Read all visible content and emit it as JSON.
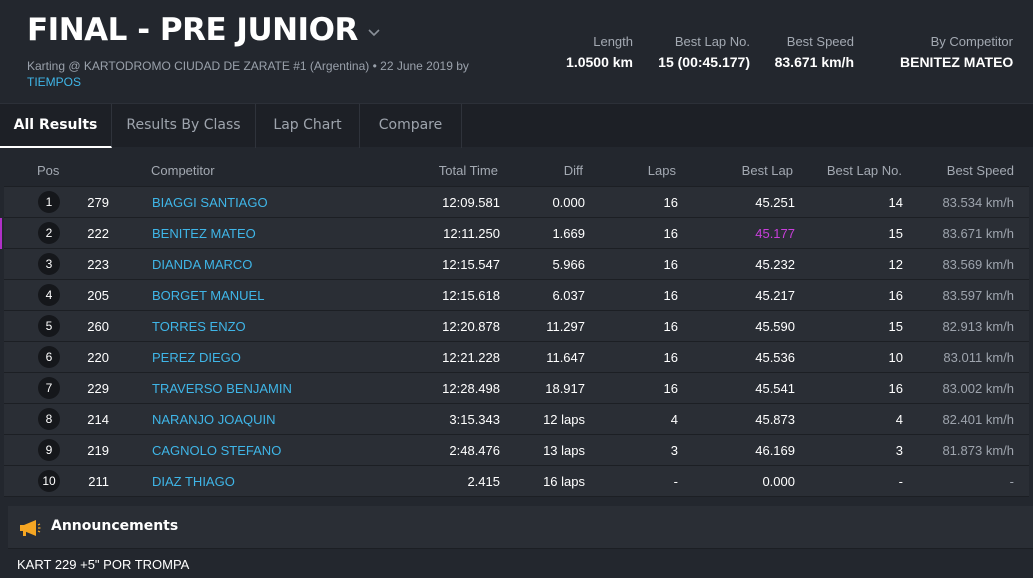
{
  "header": {
    "title": "FINAL - PRE JUNIOR",
    "subtitle_prefix": "Karting @ KARTODROMO CIUDAD DE ZARATE #1 (Argentina) • 22 June 2019 by",
    "subtitle_link": "TIEMPOS",
    "stats": [
      {
        "label": "Length",
        "value": "1.0500 km"
      },
      {
        "label": "Best Lap No.",
        "value": "15 (00:45.177)"
      },
      {
        "label": "Best Speed",
        "value": "83.671 km/h"
      },
      {
        "label": "By Competitor",
        "value": "BENITEZ MATEO"
      }
    ]
  },
  "tabs": [
    {
      "label": "All Results",
      "active": true
    },
    {
      "label": "Results By Class",
      "active": false
    },
    {
      "label": "Lap Chart",
      "active": false
    },
    {
      "label": "Compare",
      "active": false
    }
  ],
  "table": {
    "columns": [
      "Pos",
      "Competitor",
      "Total Time",
      "Diff",
      "Laps",
      "Best Lap",
      "Best Lap No.",
      "Best Speed"
    ],
    "rows": [
      {
        "pos": "1",
        "num": "279",
        "competitor": "BIAGGI SANTIAGO",
        "total": "12:09.581",
        "diff": "0.000",
        "laps": "16",
        "best_lap": "45.251",
        "best_lap_no": "14",
        "best_speed": "83.534 km/h"
      },
      {
        "pos": "2",
        "num": "222",
        "competitor": "BENITEZ MATEO",
        "total": "12:11.250",
        "diff": "1.669",
        "laps": "16",
        "best_lap": "45.177",
        "best_lap_no": "15",
        "best_speed": "83.671 km/h"
      },
      {
        "pos": "3",
        "num": "223",
        "competitor": "DIANDA MARCO",
        "total": "12:15.547",
        "diff": "5.966",
        "laps": "16",
        "best_lap": "45.232",
        "best_lap_no": "12",
        "best_speed": "83.569 km/h"
      },
      {
        "pos": "4",
        "num": "205",
        "competitor": "BORGET MANUEL",
        "total": "12:15.618",
        "diff": "6.037",
        "laps": "16",
        "best_lap": "45.217",
        "best_lap_no": "16",
        "best_speed": "83.597 km/h"
      },
      {
        "pos": "5",
        "num": "260",
        "competitor": "TORRES ENZO",
        "total": "12:20.878",
        "diff": "11.297",
        "laps": "16",
        "best_lap": "45.590",
        "best_lap_no": "15",
        "best_speed": "82.913 km/h"
      },
      {
        "pos": "6",
        "num": "220",
        "competitor": "PEREZ DIEGO",
        "total": "12:21.228",
        "diff": "11.647",
        "laps": "16",
        "best_lap": "45.536",
        "best_lap_no": "10",
        "best_speed": "83.011 km/h"
      },
      {
        "pos": "7",
        "num": "229",
        "competitor": "TRAVERSO BENJAMIN",
        "total": "12:28.498",
        "diff": "18.917",
        "laps": "16",
        "best_lap": "45.541",
        "best_lap_no": "16",
        "best_speed": "83.002 km/h"
      },
      {
        "pos": "8",
        "num": "214",
        "competitor": "NARANJO JOAQUIN",
        "total": "3:15.343",
        "diff": "12 laps",
        "laps": "4",
        "best_lap": "45.873",
        "best_lap_no": "4",
        "best_speed": "82.401 km/h"
      },
      {
        "pos": "9",
        "num": "219",
        "competitor": "CAGNOLO STEFANO",
        "total": "2:48.476",
        "diff": "13 laps",
        "laps": "3",
        "best_lap": "46.169",
        "best_lap_no": "3",
        "best_speed": "81.873 km/h"
      },
      {
        "pos": "10",
        "num": "211",
        "competitor": "DIAZ THIAGO",
        "total": "2.415",
        "diff": "16 laps",
        "laps": "-",
        "best_lap": "0.000",
        "best_lap_no": "-",
        "best_speed": "-"
      }
    ]
  },
  "announcements": {
    "title": "Announcements",
    "icon": "megaphone-icon",
    "items": [
      "KART 229 +5\" POR TROMPA"
    ]
  },
  "colors": {
    "background": "#23272e",
    "row": "#2a2e35",
    "link": "#3fb6e8",
    "best_lap_highlight": "#c93fdc",
    "announcement_icon": "#f5a623"
  }
}
